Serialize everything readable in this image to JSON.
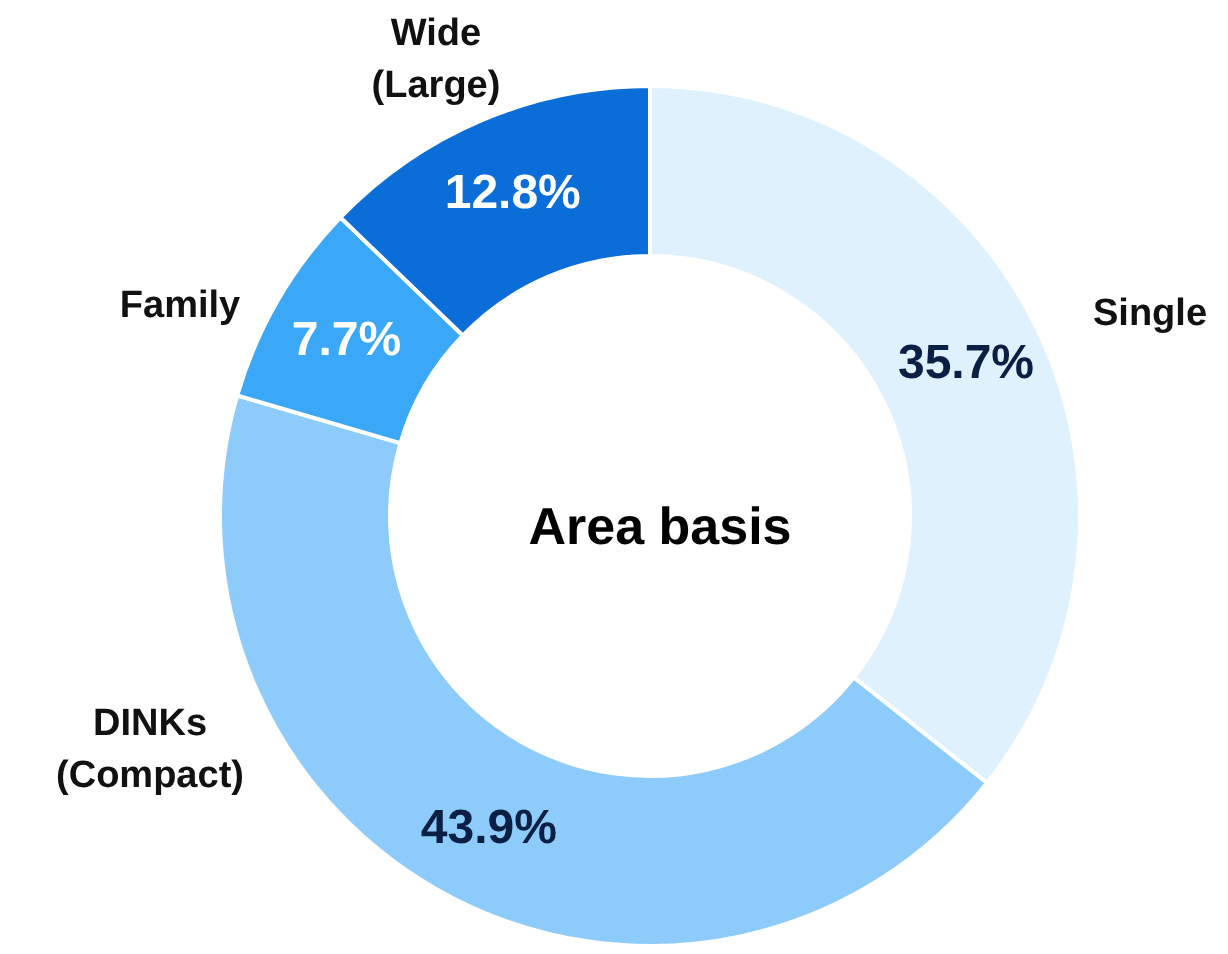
{
  "chart_data": {
    "type": "donut",
    "title": "Area basis",
    "categories": [
      "Single",
      "DINKs\n(Compact)",
      "Family",
      "Wide\n(Large)"
    ],
    "values": [
      35.7,
      43.9,
      7.7,
      12.8
    ],
    "colors": [
      "#dff1fd",
      "#8dcbfb",
      "#3aa8f7",
      "#0b6dd8"
    ],
    "value_labels": [
      "35.7%",
      "43.9%",
      "7.7%",
      "12.8%"
    ],
    "legend": false
  }
}
